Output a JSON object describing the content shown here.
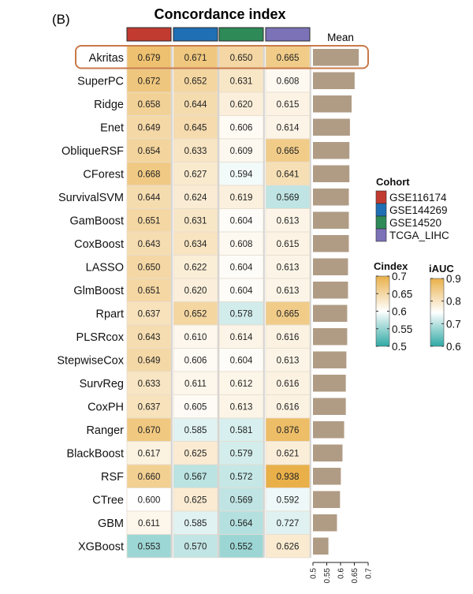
{
  "chart_data": {
    "type": "heatmap",
    "panel_label": "(B)",
    "title": "Concordance index",
    "mean_label": "Mean",
    "highlighted_row": "Akritas",
    "cohorts": [
      {
        "name": "GSE116174",
        "color": "#c23b31"
      },
      {
        "name": "GSE144269",
        "color": "#1f6fb5"
      },
      {
        "name": "GSE14520",
        "color": "#2e8a57"
      },
      {
        "name": "TCGA_LIHC",
        "color": "#7b72b8"
      }
    ],
    "rows": [
      "Akritas",
      "SuperPC",
      "Ridge",
      "Enet",
      "ObliqueRSF",
      "CForest",
      "SurvivalSVM",
      "GamBoost",
      "CoxBoost",
      "LASSO",
      "GlmBoost",
      "Rpart",
      "PLSRcox",
      "StepwiseCox",
      "SurvReg",
      "CoxPH",
      "Ranger",
      "BlackBoost",
      "RSF",
      "CTree",
      "GBM",
      "XGBoost"
    ],
    "values": [
      [
        "0.679",
        "0.671",
        "0.650",
        "0.665"
      ],
      [
        "0.672",
        "0.652",
        "0.631",
        "0.608"
      ],
      [
        "0.658",
        "0.644",
        "0.620",
        "0.615"
      ],
      [
        "0.649",
        "0.645",
        "0.606",
        "0.614"
      ],
      [
        "0.654",
        "0.633",
        "0.609",
        "0.665"
      ],
      [
        "0.668",
        "0.627",
        "0.594",
        "0.641"
      ],
      [
        "0.644",
        "0.624",
        "0.619",
        "0.569"
      ],
      [
        "0.651",
        "0.631",
        "0.604",
        "0.613"
      ],
      [
        "0.643",
        "0.634",
        "0.608",
        "0.615"
      ],
      [
        "0.650",
        "0.622",
        "0.604",
        "0.613"
      ],
      [
        "0.651",
        "0.620",
        "0.604",
        "0.613"
      ],
      [
        "0.637",
        "0.652",
        "0.578",
        "0.665"
      ],
      [
        "0.643",
        "0.610",
        "0.614",
        "0.616"
      ],
      [
        "0.649",
        "0.606",
        "0.604",
        "0.613"
      ],
      [
        "0.633",
        "0.611",
        "0.612",
        "0.616"
      ],
      [
        "0.637",
        "0.605",
        "0.613",
        "0.616"
      ],
      [
        "0.670",
        "0.585",
        "0.581",
        "0.876"
      ],
      [
        "0.617",
        "0.625",
        "0.579",
        "0.621"
      ],
      [
        "0.660",
        "0.567",
        "0.572",
        "0.938"
      ],
      [
        "0.600",
        "0.625",
        "0.569",
        "0.592"
      ],
      [
        "0.611",
        "0.585",
        "0.564",
        "0.727"
      ],
      [
        "0.553",
        "0.570",
        "0.552",
        "0.626"
      ]
    ],
    "mean_values": [
      0.666,
      0.651,
      0.64,
      0.634,
      0.632,
      0.632,
      0.63,
      0.63,
      0.63,
      0.627,
      0.627,
      0.624,
      0.624,
      0.621,
      0.619,
      0.619,
      0.613,
      0.607,
      0.601,
      0.598,
      0.587,
      0.556
    ],
    "mean_axis": {
      "range": [
        0.5,
        0.7
      ],
      "ticks": [
        "0.5",
        "0.55",
        "0.6",
        "0.65",
        "0.7"
      ]
    },
    "mean_bar_color": "#b09c85",
    "highlight_color": "#c87a4a",
    "legend": {
      "cohort_title": "Cohort",
      "cindex": {
        "title": "Cindex",
        "range": [
          0.5,
          0.7
        ],
        "ticks": [
          "0.7",
          "0.65",
          "0.6",
          "0.55",
          "0.5"
        ]
      },
      "iauc": {
        "title": "iAUC",
        "range": [
          0.6,
          0.9
        ],
        "ticks": [
          "0.9",
          "0.8",
          "0.7",
          "0.6"
        ]
      }
    },
    "color_scale": {
      "low": "#2fa9a5",
      "mid": "#ffffff",
      "high": "#e9b04a"
    }
  }
}
